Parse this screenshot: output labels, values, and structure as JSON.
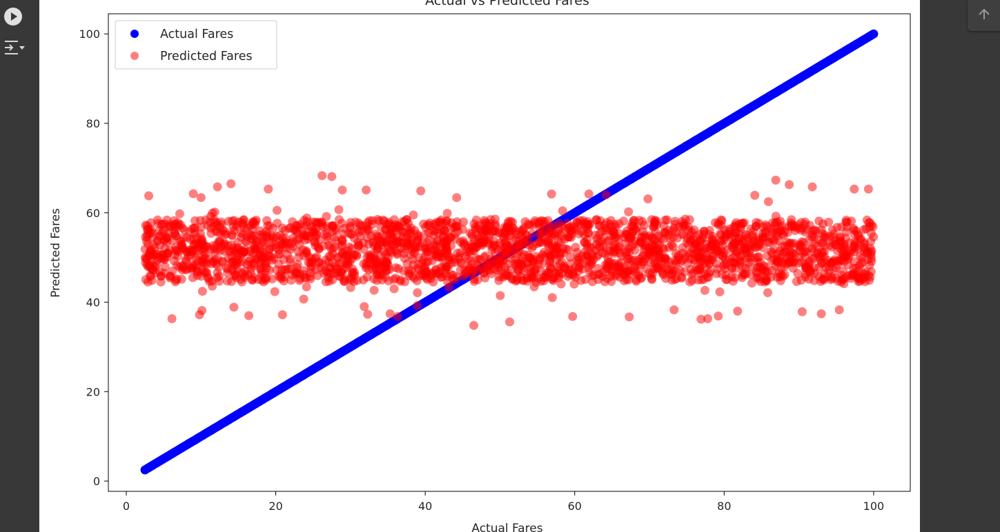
{
  "icons": {
    "run": "play-circle-icon",
    "output": "output-collapse-icon",
    "scroll_top": "arrow-up-icon"
  },
  "chart_data": {
    "type": "scatter",
    "title": "Actual vs Predicted Fares",
    "xlabel": "Actual Fares",
    "ylabel": "Predicted Fares",
    "xlim": [
      -2.4,
      104.9
    ],
    "ylim": [
      -2.3,
      104.5
    ],
    "xticks": [
      0,
      20,
      40,
      60,
      80,
      100
    ],
    "yticks": [
      0,
      20,
      40,
      60,
      80,
      100
    ],
    "grid": false,
    "legend_position": "upper-left",
    "series": [
      {
        "name": "Actual Fares",
        "color": "#0000ff",
        "alpha": 1.0,
        "description": "y equals x",
        "x_range": [
          2.5,
          100
        ],
        "y_range": [
          2.5,
          100
        ]
      },
      {
        "name": "Predicted Fares",
        "color": "#ff0000",
        "alpha": 0.5,
        "x_range": [
          2.5,
          100
        ],
        "y_center": 51.3,
        "y_band": [
          44.5,
          58.5
        ],
        "y_extremes": [
          34.8,
          68.3
        ],
        "outliers": [
          [
            26.2,
            68.3
          ],
          [
            27.5,
            68.1
          ],
          [
            14.0,
            66.5
          ],
          [
            86.9,
            67.3
          ],
          [
            12.2,
            65.8
          ],
          [
            91.8,
            65.8
          ],
          [
            99.3,
            65.3
          ],
          [
            97.4,
            65.3
          ],
          [
            88.7,
            66.3
          ],
          [
            32.1,
            65.1
          ],
          [
            28.9,
            65.1
          ],
          [
            39.4,
            64.9
          ],
          [
            19.0,
            65.3
          ],
          [
            6.1,
            36.3
          ],
          [
            9.8,
            37.2
          ],
          [
            16.4,
            37.0
          ],
          [
            20.9,
            37.2
          ],
          [
            32.3,
            37.3
          ],
          [
            35.3,
            37.4
          ],
          [
            36.3,
            36.8
          ],
          [
            46.5,
            34.8
          ],
          [
            51.3,
            35.6
          ],
          [
            67.3,
            36.7
          ],
          [
            76.9,
            36.2
          ],
          [
            77.8,
            36.3
          ],
          [
            79.2,
            36.9
          ],
          [
            81.8,
            38.0
          ],
          [
            93.0,
            37.4
          ],
          [
            95.4,
            38.3
          ],
          [
            73.3,
            38.3
          ],
          [
            14.4,
            38.9
          ],
          [
            44.2,
            63.4
          ],
          [
            56.9,
            64.2
          ],
          [
            61.9,
            64.2
          ],
          [
            64.2,
            64.0
          ],
          [
            69.8,
            63.1
          ],
          [
            84.1,
            63.9
          ],
          [
            10.0,
            63.4
          ],
          [
            3.0,
            63.8
          ]
        ]
      }
    ]
  }
}
